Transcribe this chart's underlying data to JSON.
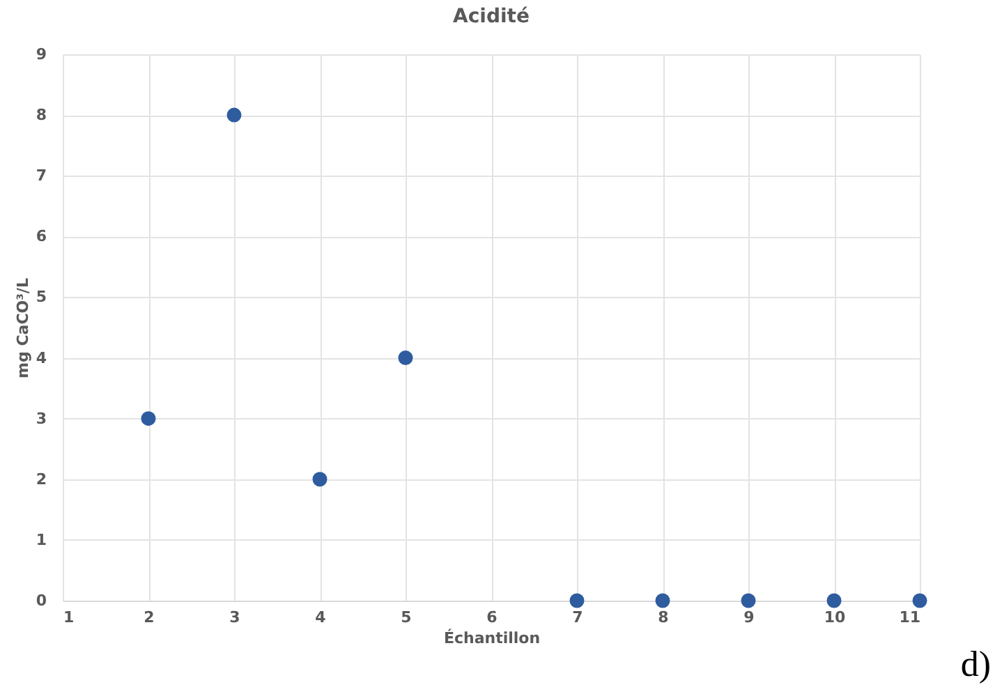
{
  "chart_data": {
    "type": "scatter",
    "title": "Acidité",
    "xlabel": "Échantillon",
    "ylabel": "mg CaCO³/L",
    "x": [
      2,
      3,
      4,
      5,
      7,
      8,
      9,
      10,
      11
    ],
    "series": [
      {
        "color": "#2e5c9e",
        "values": [
          3,
          8,
          2,
          4,
          0,
          0,
          0,
          0,
          0
        ]
      }
    ],
    "xlim": [
      1,
      11
    ],
    "xticks": [
      1,
      2,
      3,
      4,
      5,
      6,
      7,
      8,
      9,
      10,
      11
    ],
    "ylim": [
      0,
      9
    ],
    "yticks": [
      0,
      1,
      2,
      3,
      4,
      5,
      6,
      7,
      8,
      9
    ],
    "grid": true,
    "marker": "circle",
    "legend": false,
    "annotations": [
      "d)"
    ]
  }
}
